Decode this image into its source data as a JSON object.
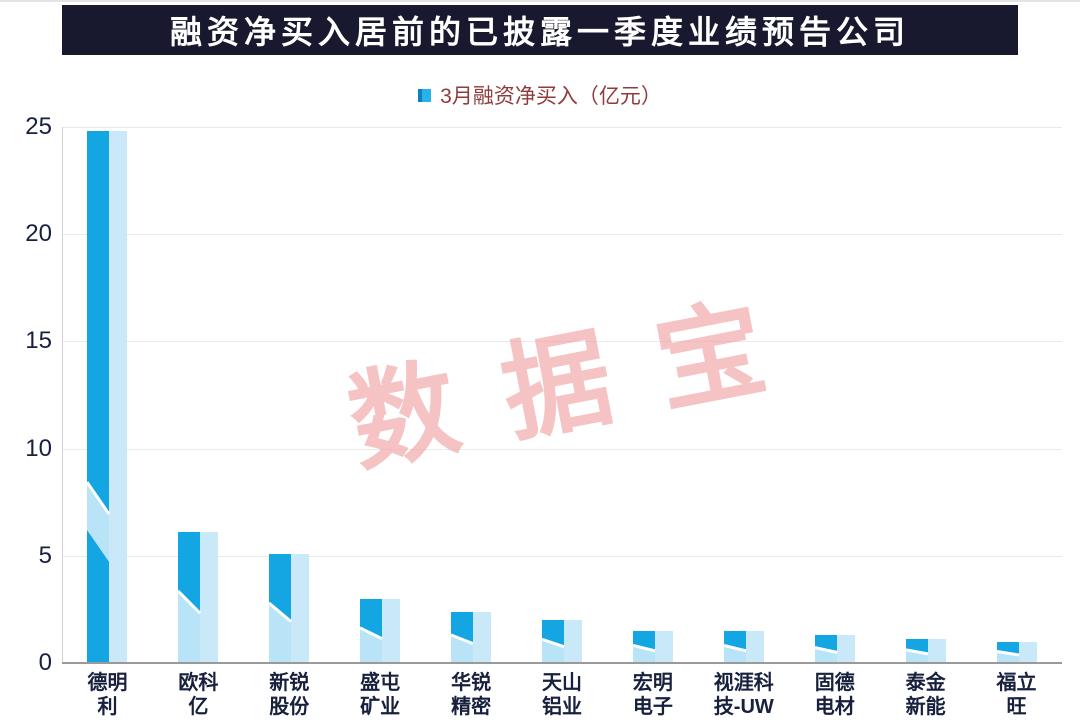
{
  "chart_data": {
    "type": "bar",
    "title": "融资净买入居前的已披露一季度业绩预告公司",
    "legend": "3月融资净买入（亿元）",
    "watermark": "数据宝",
    "categories": [
      "德明利",
      "欧科亿",
      "新锐股份",
      "盛屯矿业",
      "华锐精密",
      "天山铝业",
      "宏明电子",
      "视涯科技-UW",
      "固德电材",
      "泰金新能",
      "福立旺"
    ],
    "category_lines": [
      [
        "德明",
        "利"
      ],
      [
        "欧科",
        "亿"
      ],
      [
        "新锐",
        "股份"
      ],
      [
        "盛屯",
        "矿业"
      ],
      [
        "华锐",
        "精密"
      ],
      [
        "天山",
        "铝业"
      ],
      [
        "宏明",
        "电子"
      ],
      [
        "视涯科",
        "技-UW"
      ],
      [
        "固德",
        "电材"
      ],
      [
        "泰金",
        "新能"
      ],
      [
        "福立",
        "旺"
      ]
    ],
    "values": [
      24.8,
      6.1,
      5.1,
      3.0,
      2.4,
      2.0,
      1.5,
      1.5,
      1.3,
      1.1,
      1.0
    ],
    "xlabel": "",
    "ylabel": "",
    "ylim": [
      0,
      25
    ],
    "yticks": [
      0,
      5,
      10,
      15,
      20,
      25
    ],
    "grid": "horizontal",
    "legend_position": "top-center",
    "colors": {
      "bar_front": "#14a5e3",
      "bar_side": "#c9e9f8",
      "bar_band": "#b9e3f6",
      "bar_highlight_line": "#ffffff",
      "header_bg": "#18182f",
      "header_text": "#ffffff",
      "legend_text": "#8f3b3b",
      "watermark": "#ef9c9c",
      "axis_text": "#17203d"
    }
  }
}
